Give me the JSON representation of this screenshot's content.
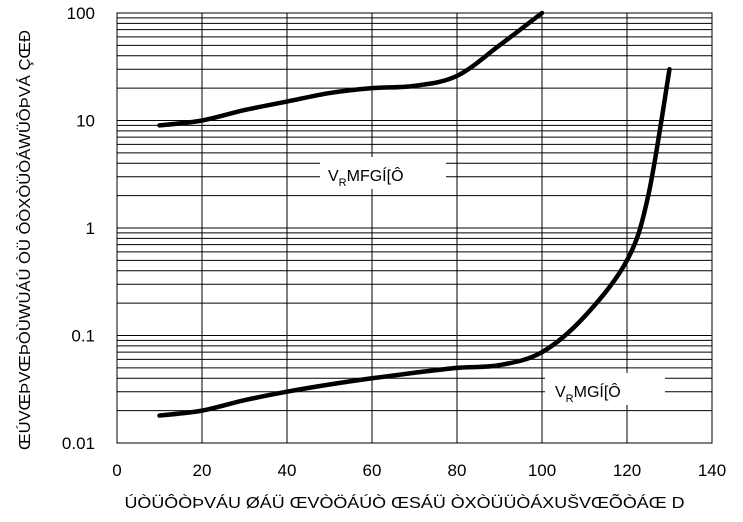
{
  "chart_data": {
    "type": "line",
    "title": "",
    "xlabel": "ÚÒÜÔÒÞVÁU ØÁÜ ŒVÒÖÁÚÒ ŒSÁÜ ÒXÒÜÜÒÁXUŠVŒÕÒÁŒ D",
    "ylabel": "ŒÚVŒÞVŒÞÒÙWÙÁÚ ÒÜ ÔÒXÒÜÒÁWÜÔÞVÁ ÇŒÐ",
    "xlim": [
      0,
      140
    ],
    "ylim": [
      0.01,
      100
    ],
    "yscale": "log",
    "grid": true,
    "x_ticks": [
      "0",
      "20",
      "40",
      "60",
      "80",
      "100",
      "120",
      "140"
    ],
    "y_ticks": [
      "0.01",
      "0.1",
      "1",
      "10",
      "100"
    ],
    "series": [
      {
        "name": "V_RMFGÍ[Ô",
        "x": [
          10,
          20,
          30,
          40,
          50,
          60,
          70,
          80,
          90,
          100
        ],
        "y": [
          9,
          10,
          12.5,
          15,
          18,
          20,
          21,
          26,
          50,
          100
        ]
      },
      {
        "name": "V_RMGÍ[Ô",
        "x": [
          10,
          20,
          30,
          40,
          50,
          60,
          70,
          80,
          90,
          100,
          110,
          120,
          125,
          130
        ],
        "y": [
          0.018,
          0.02,
          0.025,
          0.03,
          0.035,
          0.04,
          0.045,
          0.05,
          0.053,
          0.07,
          0.15,
          0.5,
          2,
          30
        ]
      }
    ],
    "annotations": [
      {
        "text_main": "V",
        "text_sub": "R",
        "text_rest": "MFGÍ[Ô",
        "series": 0
      },
      {
        "text_main": "V",
        "text_sub": "R",
        "text_rest": "MGÍ[Ô",
        "series": 1
      }
    ]
  }
}
